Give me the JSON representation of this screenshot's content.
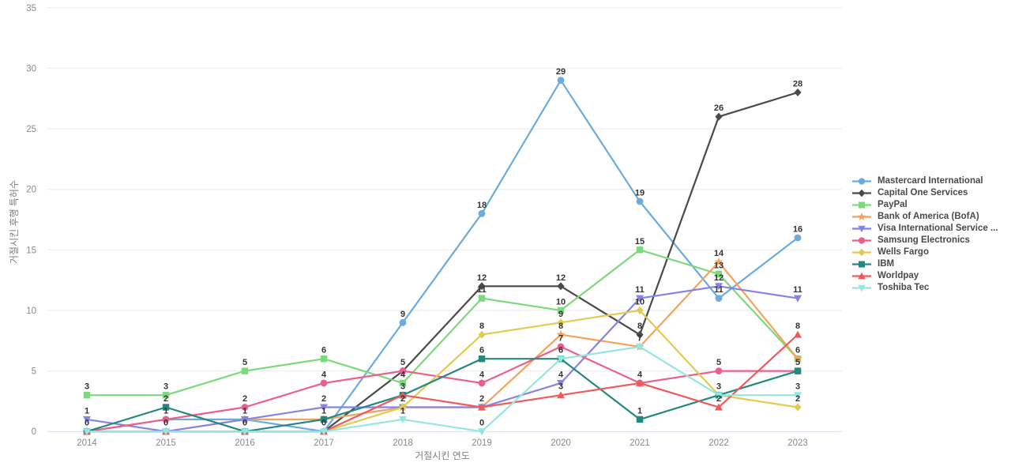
{
  "chart_data": {
    "type": "line",
    "title": "",
    "xlabel": "거절시킨 연도",
    "ylabel": "거절시킨 후행 특허수",
    "x": [
      2014,
      2015,
      2016,
      2017,
      2018,
      2019,
      2020,
      2021,
      2022,
      2023
    ],
    "ylim": [
      0,
      35
    ],
    "yticks": [
      0,
      5,
      10,
      15,
      20,
      25,
      30,
      35
    ],
    "grid": true,
    "legend_position": "right",
    "point_labels_shown": true,
    "series": [
      {
        "name": "Mastercard International",
        "color": "#6cabdd",
        "marker": "circle",
        "values": [
          0,
          1,
          1,
          0,
          9,
          18,
          29,
          19,
          11,
          16
        ]
      },
      {
        "name": "Capital One Services",
        "color": "#4a4a4a",
        "marker": "diamond",
        "values": [
          0,
          0,
          0,
          0,
          5,
          12,
          12,
          8,
          26,
          28
        ]
      },
      {
        "name": "PayPal",
        "color": "#7cd97c",
        "marker": "square",
        "values": [
          3,
          3,
          5,
          6,
          4,
          11,
          10,
          15,
          13,
          6
        ]
      },
      {
        "name": "Bank of America (BofA)",
        "color": "#f5a25c",
        "marker": "star",
        "values": [
          0,
          0,
          1,
          1,
          2,
          2,
          8,
          7,
          14,
          6
        ]
      },
      {
        "name": "Visa International Service ...",
        "color": "#8583e6",
        "marker": "triangle-down",
        "values": [
          1,
          0,
          1,
          2,
          2,
          2,
          4,
          11,
          12,
          11
        ]
      },
      {
        "name": "Samsung Electronics",
        "color": "#ec5f8b",
        "marker": "circle",
        "values": [
          0,
          1,
          2,
          4,
          5,
          4,
          7,
          4,
          5,
          5
        ]
      },
      {
        "name": "Wells Fargo",
        "color": "#e2cb51",
        "marker": "diamond",
        "values": [
          0,
          0,
          0,
          0,
          2,
          8,
          9,
          10,
          3,
          2
        ]
      },
      {
        "name": "IBM",
        "color": "#23897f",
        "marker": "square",
        "values": [
          0,
          2,
          0,
          1,
          3,
          6,
          6,
          1,
          3,
          5
        ]
      },
      {
        "name": "Worldpay",
        "color": "#ef5a5a",
        "marker": "triangle-up",
        "values": [
          0,
          0,
          0,
          0,
          3,
          2,
          3,
          4,
          2,
          8
        ]
      },
      {
        "name": "Toshiba Tec",
        "color": "#93e7e0",
        "marker": "triangle-down",
        "values": [
          0,
          0,
          0,
          0,
          1,
          0,
          6,
          7,
          3,
          3
        ]
      }
    ],
    "axis_colors": {
      "grid": "#ebebeb",
      "baseline": "#d3dbea"
    }
  }
}
